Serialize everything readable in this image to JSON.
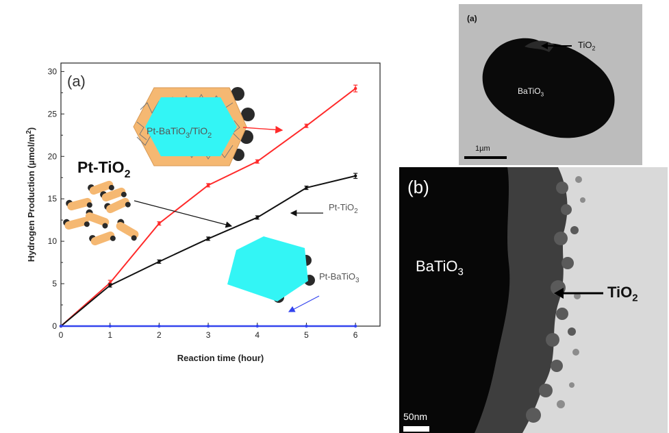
{
  "chart_data": {
    "type": "line",
    "panel_label": "(a)",
    "xlabel": "Reaction time (hour)",
    "ylabel_main": "Hydrogen Production (µmol/m",
    "ylabel_sup": "2",
    "ylabel_end": ")",
    "xlim": [
      0,
      6.5
    ],
    "ylim": [
      0,
      31
    ],
    "xticks": [
      "0",
      "1",
      "2",
      "3",
      "4",
      "5",
      "6"
    ],
    "yticks": [
      "0",
      "5",
      "10",
      "15",
      "20",
      "25",
      "30"
    ],
    "grid": false,
    "series": [
      {
        "name": "Pt-BaTiO3/TiO2",
        "color": "#ff2a2a",
        "x": [
          0,
          1,
          2,
          3,
          4,
          5,
          6
        ],
        "y": [
          0,
          5.1,
          12.1,
          16.6,
          19.4,
          23.6,
          28.0
        ],
        "err": [
          0,
          0.3,
          0.2,
          0.2,
          0.2,
          0.2,
          0.4
        ]
      },
      {
        "name": "Pt-TiO2",
        "color": "#111111",
        "x": [
          0,
          1,
          2,
          3,
          4,
          5,
          6
        ],
        "y": [
          0,
          4.8,
          7.6,
          10.3,
          12.8,
          16.3,
          17.7
        ],
        "err": [
          0,
          0.2,
          0.2,
          0.2,
          0.2,
          0.2,
          0.3
        ]
      },
      {
        "name": "Pt-BaTiO3",
        "color": "#3344ee",
        "x": [
          0,
          1,
          2,
          3,
          4,
          5,
          6
        ],
        "y": [
          0,
          0,
          0,
          0,
          0,
          0,
          0
        ],
        "err": [
          0,
          0,
          0,
          0,
          0,
          0,
          0
        ]
      }
    ],
    "annotations": {
      "big_label_main": "Pt-TiO",
      "big_label_sub": "2",
      "hybrid_label": {
        "a": "Pt-BaTiO",
        "b": "3",
        "c": "/TiO",
        "d": "2"
      },
      "pt_tio2_label": {
        "main": "Pt-TiO",
        "sub": "2"
      },
      "pt_batio3_label": {
        "main": "Pt-BaTiO",
        "sub": "3"
      }
    }
  },
  "tem_a": {
    "panel_label": "(a)",
    "tio2_main": "TiO",
    "tio2_sub": "2",
    "batio3_main": "BaTiO",
    "batio3_sub": "3",
    "scale_label": "1µm"
  },
  "tem_b": {
    "panel_label": "(b)",
    "batio3_main": "BaTiO",
    "batio3_sub": "3",
    "tio2_main": "TiO",
    "tio2_sub": "2",
    "scale_label": "50nm"
  }
}
